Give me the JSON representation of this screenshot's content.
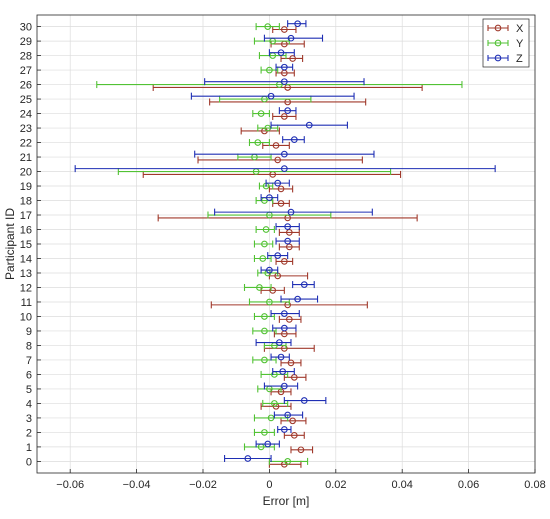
{
  "chart_data": {
    "type": "scatter",
    "subtype": "error-bar",
    "title": "",
    "xlabel": "Error [m]",
    "ylabel": "Participant ID",
    "xlim": [
      -0.07,
      0.08
    ],
    "ylim": [
      -0.8,
      30.8
    ],
    "xticks": [
      -0.06,
      -0.04,
      -0.02,
      0,
      0.02,
      0.04,
      0.06,
      0.08
    ],
    "xtick_labels": [
      "−0.06",
      "−0.04",
      "−0.02",
      "0",
      "0.02",
      "0.04",
      "0.06",
      "0.08"
    ],
    "yticks": [
      0,
      1,
      2,
      3,
      4,
      5,
      6,
      7,
      8,
      9,
      10,
      11,
      12,
      13,
      14,
      15,
      16,
      17,
      18,
      19,
      20,
      21,
      22,
      23,
      24,
      25,
      26,
      27,
      28,
      29,
      30
    ],
    "grid": true,
    "legend_position": "top-right",
    "series": [
      {
        "name": "X",
        "color": "#a0392b",
        "participants": [
          0,
          1,
          2,
          3,
          4,
          5,
          6,
          7,
          8,
          9,
          10,
          11,
          12,
          13,
          14,
          15,
          16,
          17,
          18,
          19,
          20,
          21,
          22,
          23,
          24,
          25,
          26,
          27,
          28,
          29,
          30
        ],
        "mean": [
          0.0045,
          0.0095,
          0.0075,
          0.007,
          0.002,
          0.0035,
          0.0075,
          0.0065,
          0.0045,
          0.0045,
          0.006,
          0.0055,
          0.001,
          0.0025,
          0.0045,
          0.006,
          0.006,
          0.0055,
          0.0035,
          0.0035,
          0.001,
          0.0025,
          0.002,
          -0.0015,
          0.0045,
          0.0055,
          0.0055,
          0.0045,
          0.007,
          0.0045,
          0.0045
        ],
        "lower": [
          0.0,
          0.0065,
          0.0045,
          0.0035,
          -0.0025,
          0.0005,
          0.0045,
          0.0035,
          -0.0015,
          0.0015,
          0.003,
          -0.0175,
          -0.0025,
          0.0,
          0.002,
          0.003,
          0.003,
          -0.0335,
          0.001,
          0.0,
          -0.038,
          -0.0215,
          -0.002,
          -0.0085,
          0.001,
          -0.018,
          -0.035,
          0.002,
          0.0035,
          0.0005,
          0.001
        ],
        "upper": [
          0.0095,
          0.013,
          0.0105,
          0.011,
          0.0065,
          0.0065,
          0.011,
          0.0095,
          0.0135,
          0.008,
          0.0095,
          0.0295,
          0.0045,
          0.0115,
          0.007,
          0.009,
          0.009,
          0.0445,
          0.006,
          0.007,
          0.0395,
          0.028,
          0.006,
          0.003,
          0.008,
          0.029,
          0.046,
          0.0075,
          0.01,
          0.0105,
          0.008
        ]
      },
      {
        "name": "Y",
        "color": "#52c234",
        "participants": [
          0,
          1,
          2,
          3,
          4,
          5,
          6,
          7,
          8,
          9,
          10,
          11,
          12,
          13,
          14,
          15,
          16,
          17,
          18,
          19,
          20,
          21,
          22,
          23,
          24,
          25,
          26,
          27,
          28,
          29,
          30
        ],
        "mean": [
          0.0055,
          -0.0025,
          -0.0015,
          0.0005,
          0.0015,
          0.0,
          0.0015,
          -0.0015,
          0.0015,
          -0.0015,
          -0.0015,
          0.0,
          -0.003,
          -0.0005,
          -0.002,
          -0.0015,
          -0.001,
          0.0,
          -0.0015,
          -0.001,
          -0.004,
          -0.0045,
          -0.0035,
          -0.0005,
          -0.0025,
          -0.0015,
          0.003,
          0.0,
          0.001,
          0.001,
          -0.0005
        ],
        "lower": [
          0.0,
          -0.0075,
          -0.0045,
          -0.0045,
          -0.002,
          -0.0035,
          -0.0025,
          -0.005,
          -0.0015,
          -0.005,
          -0.0045,
          -0.006,
          -0.0075,
          -0.0035,
          -0.0045,
          -0.0045,
          -0.004,
          -0.0185,
          -0.004,
          -0.003,
          -0.0455,
          -0.0095,
          -0.006,
          -0.0035,
          -0.005,
          -0.015,
          -0.052,
          -0.0025,
          -0.003,
          -0.0045,
          -0.004
        ],
        "upper": [
          0.0115,
          0.0015,
          0.0015,
          0.0055,
          0.0055,
          0.0035,
          0.0055,
          0.002,
          0.005,
          0.002,
          0.0015,
          0.006,
          0.0005,
          0.0025,
          0.0005,
          0.001,
          0.0015,
          0.0185,
          0.001,
          0.001,
          0.0365,
          0.0005,
          0.0,
          0.0025,
          0.0,
          0.0125,
          0.058,
          0.0025,
          0.005,
          0.006,
          0.003
        ]
      },
      {
        "name": "Z",
        "color": "#1f2fb4",
        "participants": [
          0,
          1,
          2,
          3,
          4,
          5,
          6,
          7,
          8,
          9,
          10,
          11,
          12,
          13,
          14,
          15,
          16,
          17,
          18,
          19,
          20,
          21,
          22,
          23,
          24,
          25,
          26,
          27,
          28,
          29,
          30
        ],
        "mean": [
          -0.0065,
          -0.0005,
          0.0045,
          0.0055,
          0.0105,
          0.0045,
          0.004,
          0.0035,
          0.003,
          0.0045,
          0.0045,
          0.0085,
          0.0105,
          0.0,
          0.0025,
          0.0055,
          0.0055,
          0.0065,
          0.0,
          0.0025,
          0.0045,
          0.0045,
          0.0075,
          0.012,
          0.0055,
          0.0005,
          0.0045,
          0.0045,
          0.0035,
          0.0065,
          0.0085
        ],
        "lower": [
          -0.0135,
          -0.004,
          0.0025,
          0.0015,
          0.0045,
          -0.0015,
          0.001,
          0.0005,
          -0.004,
          0.001,
          0.0005,
          0.0035,
          0.007,
          -0.0025,
          -0.0005,
          0.002,
          0.002,
          -0.0165,
          -0.0025,
          -0.001,
          -0.0585,
          -0.0225,
          0.004,
          0.0005,
          0.003,
          -0.0235,
          -0.0195,
          0.002,
          0.0,
          -0.0015,
          0.0055
        ],
        "upper": [
          0.0005,
          0.003,
          0.0065,
          0.01,
          0.017,
          0.0085,
          0.0075,
          0.006,
          0.0065,
          0.008,
          0.009,
          0.0145,
          0.0135,
          0.0025,
          0.0055,
          0.009,
          0.009,
          0.031,
          0.0025,
          0.006,
          0.068,
          0.0315,
          0.0105,
          0.0235,
          0.008,
          0.0255,
          0.0285,
          0.007,
          0.0075,
          0.016,
          0.011
        ]
      }
    ]
  }
}
